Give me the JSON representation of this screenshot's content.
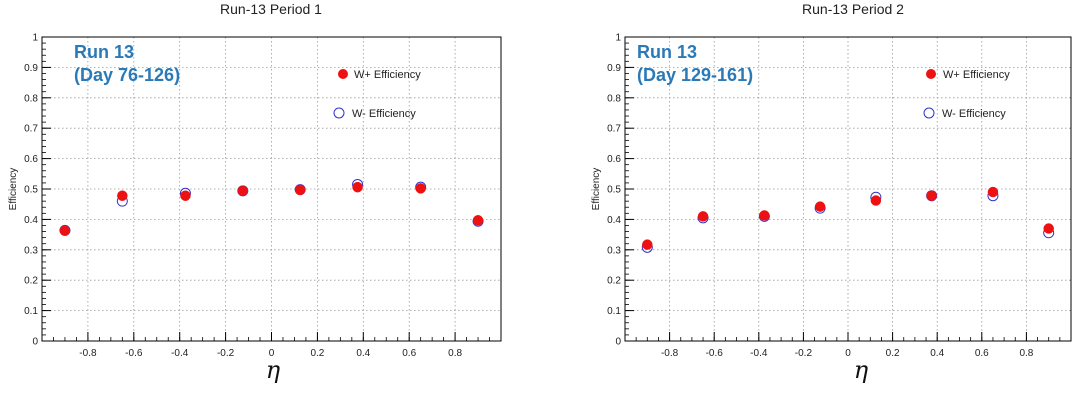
{
  "chart_data": [
    {
      "type": "scatter",
      "title": "Run-13 Period 1",
      "xlabel": "η",
      "ylabel": "Efficiency",
      "xlim": [
        -1,
        1
      ],
      "ylim": [
        0,
        1
      ],
      "x_ticks": [
        "-0.8",
        "-0.6",
        "-0.4",
        "-0.2",
        "0",
        "0.2",
        "0.4",
        "0.6",
        "0.8"
      ],
      "y_ticks": [
        "0",
        "0.1",
        "0.2",
        "0.3",
        "0.4",
        "0.5",
        "0.6",
        "0.7",
        "0.8",
        "0.9",
        "1"
      ],
      "grid": true,
      "legend_position": "top-right",
      "annotation": [
        "Run 13",
        "(Day 76-126)"
      ],
      "annotation_color": "#2a7ab8",
      "series": [
        {
          "name": "W+ Efficiency",
          "marker": "filled-circle",
          "color": "#ee1111",
          "x": [
            -0.9,
            -0.65,
            -0.375,
            -0.125,
            0.125,
            0.375,
            0.65,
            0.9
          ],
          "y": [
            0.363,
            0.478,
            0.478,
            0.494,
            0.497,
            0.506,
            0.502,
            0.397
          ]
        },
        {
          "name": "W- Efficiency",
          "marker": "open-circle",
          "color": "#3333cc",
          "x": [
            -0.9,
            -0.65,
            -0.375,
            -0.125,
            0.125,
            0.375,
            0.65,
            0.9
          ],
          "y": [
            0.364,
            0.46,
            0.486,
            0.494,
            0.498,
            0.515,
            0.506,
            0.394
          ]
        }
      ]
    },
    {
      "type": "scatter",
      "title": "Run-13 Period 2",
      "xlabel": "η",
      "ylabel": "Efficiency",
      "xlim": [
        -1,
        1
      ],
      "ylim": [
        0,
        1
      ],
      "x_ticks": [
        "-0.8",
        "-0.6",
        "-0.4",
        "-0.2",
        "0",
        "0.2",
        "0.4",
        "0.6",
        "0.8"
      ],
      "y_ticks": [
        "0",
        "0.1",
        "0.2",
        "0.3",
        "0.4",
        "0.5",
        "0.6",
        "0.7",
        "0.8",
        "0.9",
        "1"
      ],
      "grid": true,
      "legend_position": "top-right",
      "annotation": [
        "Run 13",
        "(Day 129-161)"
      ],
      "annotation_color": "#2a7ab8",
      "series": [
        {
          "name": "W+ Efficiency",
          "marker": "filled-circle",
          "color": "#ee1111",
          "x": [
            -0.9,
            -0.65,
            -0.375,
            -0.125,
            0.125,
            0.375,
            0.65,
            0.9
          ],
          "y": [
            0.317,
            0.41,
            0.413,
            0.442,
            0.462,
            0.478,
            0.49,
            0.37
          ]
        },
        {
          "name": "W- Efficiency",
          "marker": "open-circle",
          "color": "#3333cc",
          "x": [
            -0.9,
            -0.65,
            -0.375,
            -0.125,
            0.125,
            0.375,
            0.65,
            0.9
          ],
          "y": [
            0.308,
            0.405,
            0.41,
            0.437,
            0.473,
            0.478,
            0.478,
            0.356
          ]
        }
      ]
    }
  ]
}
